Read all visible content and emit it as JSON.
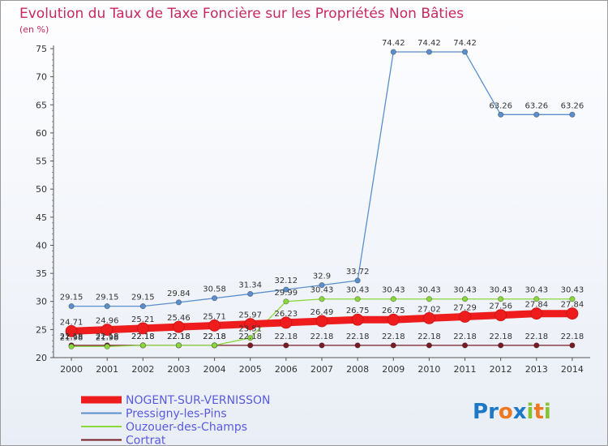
{
  "chart_data": {
    "type": "line",
    "title": "Evolution du Taux de Taxe Foncière sur les Propriétés Non Bâties",
    "subtitle": "(en %)",
    "xlabel": "",
    "ylabel": "(en %)",
    "x": [
      "2000",
      "2001",
      "2002",
      "2003",
      "2004",
      "2005",
      "2006",
      "2007",
      "2008",
      "2009",
      "2010",
      "2011",
      "2012",
      "2013",
      "2014"
    ],
    "ylim": [
      20,
      75
    ],
    "yticks": [
      20,
      25,
      30,
      35,
      40,
      45,
      50,
      55,
      60,
      65,
      70,
      75
    ],
    "grid": false,
    "legend_position": "bottom-left",
    "series": [
      {
        "name": "NOGENT-SUR-VERNISSON",
        "color": "#ee1c1c",
        "values": [
          24.71,
          24.96,
          25.21,
          25.46,
          25.71,
          25.97,
          26.23,
          26.49,
          26.75,
          26.75,
          27.02,
          27.29,
          27.56,
          27.84,
          27.84
        ],
        "labels": [
          "24.71",
          "24.96",
          "25.21",
          "25.46",
          "25.71",
          "25.97",
          "26.23",
          "26.49",
          "26.75",
          "26.75",
          "27.02",
          "27.29",
          "27.56",
          "27.84",
          "27.84"
        ]
      },
      {
        "name": "Pressigny-les-Pins",
        "color": "#5a8fcc",
        "values": [
          29.15,
          29.15,
          29.15,
          29.84,
          30.58,
          31.34,
          32.12,
          32.9,
          33.72,
          74.42,
          74.42,
          74.42,
          63.26,
          63.26,
          63.26
        ],
        "labels": [
          "29.15",
          "29.15",
          "29.15",
          "29.84",
          "30.58",
          "31.34",
          "32.12",
          "32.9",
          "33.72",
          "74.42",
          "74.42",
          "74.42",
          "63.26",
          "63.26",
          "63.26"
        ]
      },
      {
        "name": "Ouzouer-des-Champs",
        "color": "#8ad83c",
        "values": [
          21.98,
          21.98,
          22.18,
          22.18,
          22.18,
          23.51,
          29.99,
          30.43,
          30.43,
          30.43,
          30.43,
          30.43,
          30.43,
          30.43,
          30.43
        ],
        "labels": [
          "21.98",
          "21.98",
          "22.18",
          "22.18",
          "22.18",
          "23.51",
          "29.99",
          "30.43",
          "30.43",
          "30.43",
          "30.43",
          "30.43",
          "30.43",
          "30.43",
          "30.43"
        ]
      },
      {
        "name": "Cortrat",
        "color": "#7a1a24",
        "values": [
          22.18,
          22.18,
          22.18,
          22.18,
          22.18,
          22.18,
          22.18,
          22.18,
          22.18,
          22.18,
          22.18,
          22.18,
          22.18,
          22.18,
          22.18
        ],
        "labels": [
          "22.18",
          "22.18",
          "22.18",
          "22.18",
          "22.18",
          "22.18",
          "22.18",
          "22.18",
          "22.18",
          "22.18",
          "22.18",
          "22.18",
          "22.18",
          "22.18",
          "22.18"
        ]
      }
    ]
  },
  "logo": {
    "text": "Proxiti",
    "letters": [
      "P",
      "r",
      "o",
      "x",
      "i",
      "t",
      "i"
    ],
    "letter_colors": [
      "#1e78c8",
      "#1e78c8",
      "#f07820",
      "#1e78c8",
      "#84c431",
      "#f07820",
      "#84c431"
    ]
  }
}
